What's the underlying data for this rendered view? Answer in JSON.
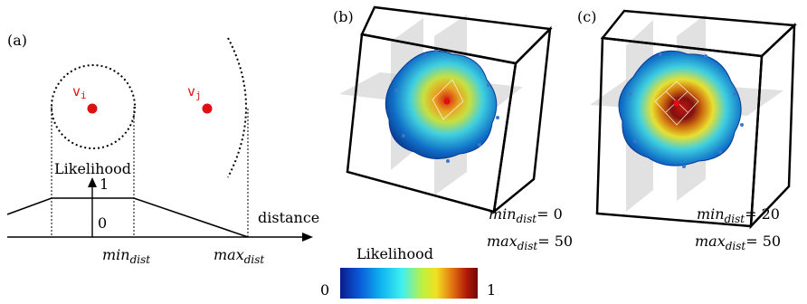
{
  "panels": {
    "a": {
      "label": "(a)",
      "node_i": "v",
      "node_i_sub": "i",
      "node_j": "v",
      "node_j_sub": "j",
      "y_axis_label": "Likelihood",
      "tick_one": "1",
      "tick_zero": "0",
      "x_axis_label": "distance",
      "min_label_main": "min",
      "min_label_sub": "dist",
      "max_label_main": "max",
      "max_label_sub": "dist"
    },
    "b": {
      "label": "(b)",
      "min_main": "min",
      "min_sub": "dist",
      "min_value": "= 0",
      "max_main": "max",
      "max_sub": "dist",
      "max_value": "= 50"
    },
    "c": {
      "label": "(c)",
      "min_main": "min",
      "min_sub": "dist",
      "min_value": "= 20",
      "max_main": "max",
      "max_sub": "dist",
      "max_value": "= 50"
    }
  },
  "colorbar": {
    "title": "Likelihood",
    "min_label": "0",
    "max_label": "1",
    "colors": [
      "#0a1a8c",
      "#0a5ad8",
      "#10b4f0",
      "#40f0f0",
      "#c0f040",
      "#f0e020",
      "#e07010",
      "#b01808",
      "#700808"
    ]
  },
  "colors": {
    "node": "#e01010",
    "plane": "#c8c8c8"
  }
}
